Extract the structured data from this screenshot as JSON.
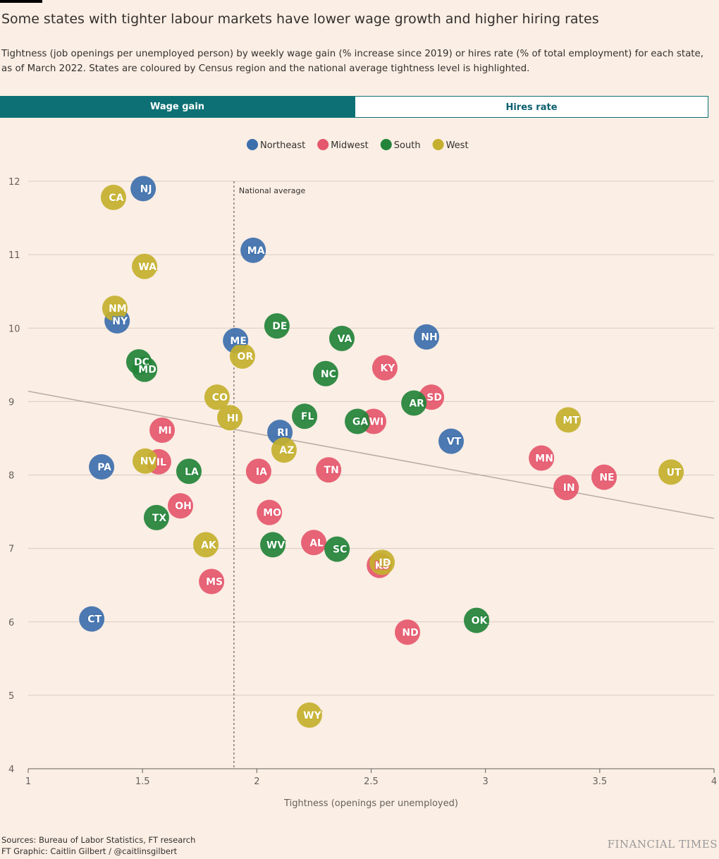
{
  "chart_data": {
    "type": "scatter",
    "title": "Some states with tighter labour markets have lower wage growth and higher hiring rates",
    "subtitle": "Tightness (job openings per unemployed person) by weekly wage gain (% increase since 2019) or hires rate (% of total employment) for each state, as of March 2022. States are coloured by Census region and the national average tightness level is highlighted.",
    "tabs": [
      "Wage gain",
      "Hires rate"
    ],
    "x_label": "Tightness (openings per unemployed)",
    "xlim": [
      1,
      4
    ],
    "xticks": [
      1,
      1.5,
      2,
      2.5,
      3,
      3.5,
      4
    ],
    "ylim": [
      4,
      12
    ],
    "yticks": [
      4,
      5,
      6,
      7,
      8,
      9,
      10,
      11,
      12
    ],
    "grid": true,
    "reference_line": {
      "x": 1.9,
      "label": "National average"
    },
    "trend_line": {
      "x": [
        1,
        4
      ],
      "y": [
        9.14,
        7.41
      ],
      "color": "#b8aba3"
    },
    "series": [
      {
        "name": "Northeast",
        "color": "#3d6fad",
        "labels": [
          "NJ",
          "MA",
          "NY",
          "ME",
          "NH",
          "RI",
          "VT",
          "PA",
          "CT"
        ],
        "x": [
          1.503,
          1.984,
          1.389,
          1.907,
          2.742,
          2.101,
          2.85,
          1.321,
          1.278
        ],
        "y": [
          11.9,
          11.06,
          10.1,
          9.83,
          9.88,
          8.58,
          8.46,
          8.11,
          6.04
        ]
      },
      {
        "name": "Midwest",
        "color": "#e5576c",
        "labels": [
          "KY",
          "SD",
          "WI",
          "MI",
          "IL",
          "IA",
          "TN",
          "MN",
          "NE",
          "IN",
          "OH",
          "MO",
          "AL",
          "KS",
          "MS",
          "ND"
        ],
        "x": [
          2.56,
          2.764,
          2.511,
          1.586,
          1.57,
          2.008,
          2.314,
          3.245,
          3.519,
          3.353,
          1.666,
          2.055,
          2.249,
          2.536,
          1.802,
          2.659
        ],
        "y": [
          9.46,
          9.06,
          8.73,
          8.61,
          8.18,
          8.05,
          8.07,
          8.23,
          7.97,
          7.83,
          7.58,
          7.49,
          7.08,
          6.77,
          6.55,
          5.86
        ]
      },
      {
        "name": "South",
        "color": "#23833a",
        "labels": [
          "DE",
          "VA",
          "NC",
          "DC",
          "MD",
          "AR",
          "FL",
          "GA",
          "LA",
          "TX",
          "WV",
          "SC",
          "OK"
        ],
        "x": [
          2.088,
          2.372,
          2.301,
          1.484,
          1.509,
          2.687,
          2.209,
          2.44,
          1.703,
          1.561,
          2.07,
          2.351,
          2.961
        ],
        "y": [
          10.03,
          9.86,
          9.38,
          9.54,
          9.44,
          8.98,
          8.8,
          8.73,
          8.05,
          7.42,
          7.05,
          6.99,
          6.02
        ]
      },
      {
        "name": "West",
        "color": "#c4b02e",
        "labels": [
          "CA",
          "WA",
          "NM",
          "OR",
          "CO",
          "HI",
          "MT",
          "AZ",
          "NV",
          "UT",
          "AK",
          "ID",
          "WY"
        ],
        "x": [
          1.373,
          1.509,
          1.379,
          1.937,
          1.826,
          1.882,
          3.362,
          2.119,
          1.512,
          3.812,
          1.777,
          2.548,
          2.23
        ],
        "y": [
          11.78,
          10.84,
          10.27,
          9.62,
          9.06,
          8.78,
          8.75,
          8.34,
          8.19,
          8.04,
          7.05,
          6.81,
          4.73
        ]
      }
    ],
    "source": "Sources: Bureau of Labor Statistics, FT research",
    "credit": "FT Graphic: Caitlin Gilbert / @caitlinsgilbert",
    "logo": "FINANCIAL TIMES"
  }
}
